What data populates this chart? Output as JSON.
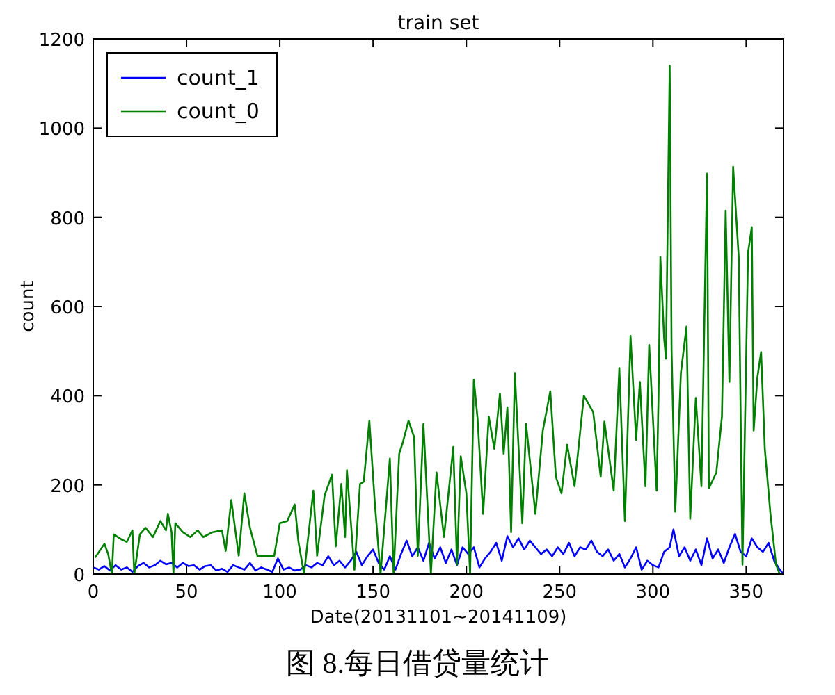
{
  "chart_data": {
    "type": "line",
    "title": "train set",
    "xlabel": "Date(20131101~20141109)",
    "ylabel": "count",
    "annotations": [
      "图 8.每日借贷量统计"
    ],
    "xlim": [
      0,
      370
    ],
    "ylim": [
      0,
      1200
    ],
    "xticks": [
      0,
      50,
      100,
      150,
      200,
      250,
      300,
      350
    ],
    "yticks": [
      0,
      200,
      400,
      600,
      800,
      1000,
      1200
    ],
    "grid": false,
    "legend": "top left",
    "series": [
      {
        "name": "count_1",
        "color": "#0000ff",
        "x": [
          0,
          3,
          6,
          9,
          12,
          15,
          18,
          21,
          24,
          27,
          30,
          33,
          36,
          39,
          42,
          45,
          48,
          51,
          54,
          57,
          60,
          63,
          66,
          69,
          72,
          75,
          78,
          81,
          84,
          87,
          90,
          93,
          96,
          99,
          102,
          105,
          108,
          111,
          114,
          117,
          120,
          123,
          126,
          129,
          132,
          135,
          138,
          141,
          144,
          147,
          150,
          153,
          156,
          159,
          162,
          165,
          168,
          171,
          174,
          177,
          180,
          183,
          186,
          189,
          192,
          195,
          198,
          201,
          204,
          207,
          210,
          213,
          216,
          219,
          222,
          225,
          228,
          231,
          234,
          237,
          240,
          243,
          246,
          249,
          252,
          255,
          258,
          261,
          264,
          267,
          270,
          273,
          276,
          279,
          282,
          285,
          288,
          291,
          294,
          297,
          300,
          303,
          306,
          309,
          311,
          314,
          317,
          320,
          323,
          326,
          329,
          332,
          335,
          338,
          341,
          344,
          347,
          350,
          353,
          356,
          359,
          362,
          365,
          368,
          370
        ],
        "values": [
          15,
          10,
          18,
          8,
          20,
          10,
          15,
          5,
          18,
          25,
          15,
          20,
          30,
          22,
          25,
          15,
          25,
          18,
          20,
          10,
          18,
          20,
          8,
          12,
          5,
          20,
          15,
          10,
          25,
          8,
          15,
          10,
          5,
          35,
          10,
          15,
          8,
          10,
          20,
          15,
          25,
          20,
          40,
          20,
          30,
          15,
          30,
          50,
          20,
          40,
          55,
          25,
          10,
          40,
          10,
          45,
          75,
          40,
          60,
          30,
          70,
          35,
          60,
          25,
          55,
          20,
          60,
          45,
          60,
          15,
          35,
          50,
          70,
          30,
          85,
          60,
          80,
          55,
          75,
          60,
          45,
          55,
          40,
          60,
          45,
          70,
          40,
          60,
          55,
          75,
          50,
          40,
          55,
          30,
          45,
          15,
          35,
          60,
          10,
          30,
          20,
          15,
          50,
          60,
          100,
          40,
          60,
          30,
          55,
          20,
          80,
          35,
          55,
          25,
          60,
          90,
          50,
          40,
          80,
          60,
          50,
          70,
          30,
          10,
          0
        ]
      },
      {
        "name": "count_0",
        "color": "#008000",
        "x": [
          1,
          6,
          8,
          10,
          11,
          15,
          18,
          21,
          22,
          25,
          28,
          32,
          36,
          39,
          40,
          42,
          43,
          44,
          48,
          52,
          56,
          59,
          64,
          69,
          71,
          74,
          78,
          81,
          84,
          88,
          97,
          100,
          104,
          108,
          110,
          113,
          118,
          120,
          124,
          128,
          130,
          133,
          135,
          136,
          140,
          143,
          145,
          148,
          151,
          154,
          159,
          161,
          164,
          166,
          169,
          172,
          174,
          177,
          181,
          184,
          188,
          193,
          195,
          197,
          200,
          202,
          204,
          206,
          209,
          212,
          215,
          218,
          220,
          222,
          224,
          226,
          230,
          232,
          237,
          241,
          245,
          248,
          251,
          254,
          258,
          263,
          268,
          272,
          274,
          279,
          282,
          285,
          288,
          291,
          293,
          296,
          298,
          302,
          303,
          304,
          306,
          307,
          309,
          310,
          312,
          315,
          318,
          320,
          323,
          326,
          329,
          330,
          334,
          337,
          339,
          341,
          343,
          346,
          348,
          351,
          353,
          354,
          356,
          358,
          360,
          363,
          366,
          368,
          370
        ],
        "values": [
          37,
          68,
          45,
          0,
          89,
          78,
          72,
          98,
          0,
          89,
          104,
          83,
          119,
          98,
          135,
          94,
          0,
          114,
          94,
          83,
          98,
          83,
          94,
          98,
          52,
          166,
          41,
          181,
          104,
          41,
          41,
          114,
          119,
          156,
          72,
          0,
          187,
          41,
          176,
          223,
          62,
          202,
          83,
          233,
          10,
          202,
          207,
          344,
          156,
          0,
          259,
          0,
          270,
          296,
          344,
          307,
          41,
          337,
          0,
          228,
          83,
          285,
          21,
          264,
          181,
          0,
          436,
          349,
          135,
          353,
          281,
          405,
          270,
          374,
          94,
          451,
          114,
          337,
          135,
          322,
          410,
          218,
          181,
          290,
          197,
          400,
          363,
          218,
          342,
          187,
          462,
          119,
          534,
          301,
          431,
          197,
          514,
          187,
          395,
          711,
          529,
          483,
          1140,
          503,
          140,
          451,
          555,
          124,
          395,
          197,
          898,
          192,
          228,
          353,
          815,
          431,
          913,
          711,
          21,
          721,
          778,
          322,
          441,
          498,
          280,
          135,
          21,
          0,
          0
        ]
      }
    ]
  }
}
